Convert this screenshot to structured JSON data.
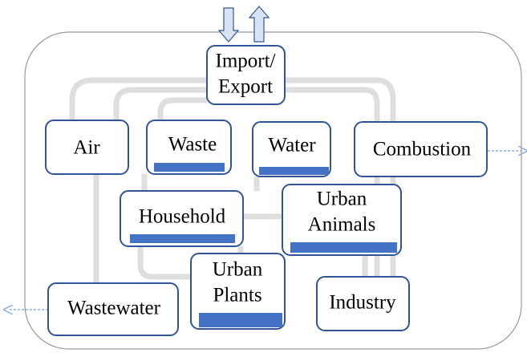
{
  "nodes": [
    {
      "lines": [
        "Import/",
        "Export"
      ]
    },
    {
      "lines": [
        "Air"
      ]
    },
    {
      "lines": [
        "Waste"
      ]
    },
    {
      "lines": [
        "Water"
      ]
    },
    {
      "lines": [
        "Combustion"
      ]
    },
    {
      "lines": [
        "Household"
      ]
    },
    {
      "lines": [
        "Urban",
        "Animals"
      ]
    },
    {
      "lines": [
        "Urban",
        "Plants"
      ]
    },
    {
      "lines": [
        "Wastewater"
      ]
    },
    {
      "lines": [
        "Industry"
      ]
    }
  ]
}
